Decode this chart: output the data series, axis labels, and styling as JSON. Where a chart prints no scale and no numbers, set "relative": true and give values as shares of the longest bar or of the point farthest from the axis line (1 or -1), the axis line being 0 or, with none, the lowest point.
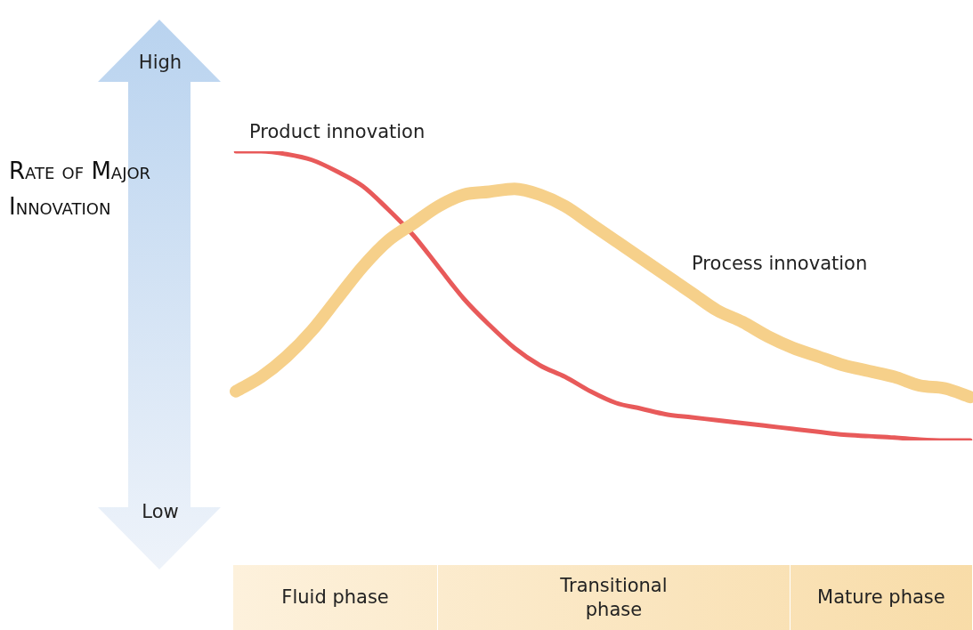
{
  "chart_data": {
    "type": "line",
    "relative": true,
    "ylabel": "Rate of Major Innovation",
    "legend": false,
    "tick_labels": false,
    "marker": "none",
    "categories": [
      null,
      null,
      null,
      null,
      null,
      null,
      null,
      null,
      null,
      null,
      null,
      null,
      null,
      null,
      null,
      null,
      null,
      null,
      null,
      null,
      null,
      null,
      null,
      null,
      null,
      null,
      null,
      null,
      null,
      null
    ],
    "series": [
      {
        "name": "Product innovation",
        "color": "#e85a5a",
        "values": [
          1,
          1,
          0.99,
          0.97,
          0.93,
          0.88,
          0.8,
          0.71,
          0.6,
          0.49,
          0.4,
          0.32,
          0.26,
          0.22,
          0.17,
          0.13,
          0.11,
          0.09,
          0.08,
          0.07,
          0.06,
          0.05,
          0.04,
          0.03,
          0.02,
          0.015,
          0.01,
          0.003,
          0,
          0
        ]
      },
      {
        "name": "Process innovation",
        "color": "#f6d08a",
        "values": [
          0.17,
          0.22,
          0.29,
          0.38,
          0.49,
          0.6,
          0.69,
          0.75,
          0.81,
          0.85,
          0.86,
          0.87,
          0.85,
          0.81,
          0.75,
          0.69,
          0.63,
          0.57,
          0.51,
          0.45,
          0.41,
          0.36,
          0.32,
          0.29,
          0.26,
          0.24,
          0.22,
          0.19,
          0.18,
          0.15
        ]
      }
    ],
    "annotations": [
      "High",
      "Low",
      "Fluid phase",
      "Transitional phase",
      "Mature phase"
    ]
  }
}
